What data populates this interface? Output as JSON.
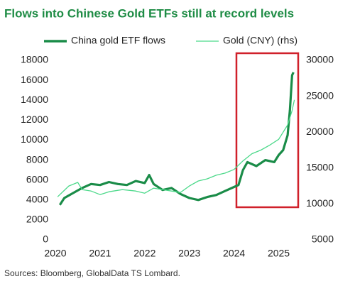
{
  "chart_data": {
    "type": "line",
    "title": "Flows into Chinese Gold ETFs still at record levels",
    "source": "Sources: Bloomberg, GlobalData TS Lombard.",
    "series": [
      {
        "name": "China gold ETF flows",
        "color": "#1a8c48",
        "x": [
          2020.1,
          2020.2,
          2020.4,
          2020.6,
          2020.8,
          2021.0,
          2021.2,
          2021.4,
          2021.6,
          2021.8,
          2022.0,
          2022.1,
          2022.2,
          2022.4,
          2022.6,
          2022.8,
          2023.0,
          2023.2,
          2023.4,
          2023.6,
          2023.8,
          2024.0,
          2024.1,
          2024.2,
          2024.3,
          2024.5,
          2024.7,
          2024.9,
          2025.0,
          2025.1,
          2025.2,
          2025.25,
          2025.3,
          2025.33
        ],
        "values": [
          3500,
          4200,
          4700,
          5200,
          5600,
          5500,
          5800,
          5600,
          5500,
          5900,
          5700,
          6500,
          5600,
          5000,
          5200,
          4600,
          4200,
          4000,
          4300,
          4500,
          4900,
          5300,
          5500,
          7000,
          7800,
          7400,
          8000,
          7800,
          8500,
          9000,
          10500,
          13000,
          16500,
          16800
        ]
      },
      {
        "name": "Gold (CNY) (rhs)",
        "color": "#4cd98a",
        "axis": "y2",
        "x": [
          2020.05,
          2020.3,
          2020.5,
          2020.6,
          2020.8,
          2021.0,
          2021.2,
          2021.5,
          2021.8,
          2022.0,
          2022.2,
          2022.4,
          2022.6,
          2022.8,
          2023.0,
          2023.2,
          2023.4,
          2023.6,
          2023.8,
          2024.0,
          2024.2,
          2024.4,
          2024.6,
          2024.8,
          2025.0,
          2025.2,
          2025.3,
          2025.35
        ],
        "values": [
          11000,
          12500,
          13000,
          12000,
          11800,
          11300,
          11700,
          12000,
          11800,
          11500,
          12200,
          12000,
          11800,
          11600,
          12500,
          13200,
          13500,
          14000,
          14300,
          14800,
          16000,
          17000,
          17500,
          18200,
          19000,
          21000,
          23000,
          24500
        ]
      }
    ],
    "xlim": [
      2020,
      2025.5
    ],
    "xticks": [
      2020,
      2021,
      2022,
      2023,
      2024,
      2025
    ],
    "ylim": [
      0,
      18000
    ],
    "yticks": [
      0,
      2000,
      4000,
      6000,
      8000,
      10000,
      12000,
      14000,
      16000,
      18000
    ],
    "y2lim": [
      5000,
      30000
    ],
    "y2ticks": [
      5000,
      10000,
      15000,
      20000,
      25000,
      30000
    ],
    "grid": false
  }
}
